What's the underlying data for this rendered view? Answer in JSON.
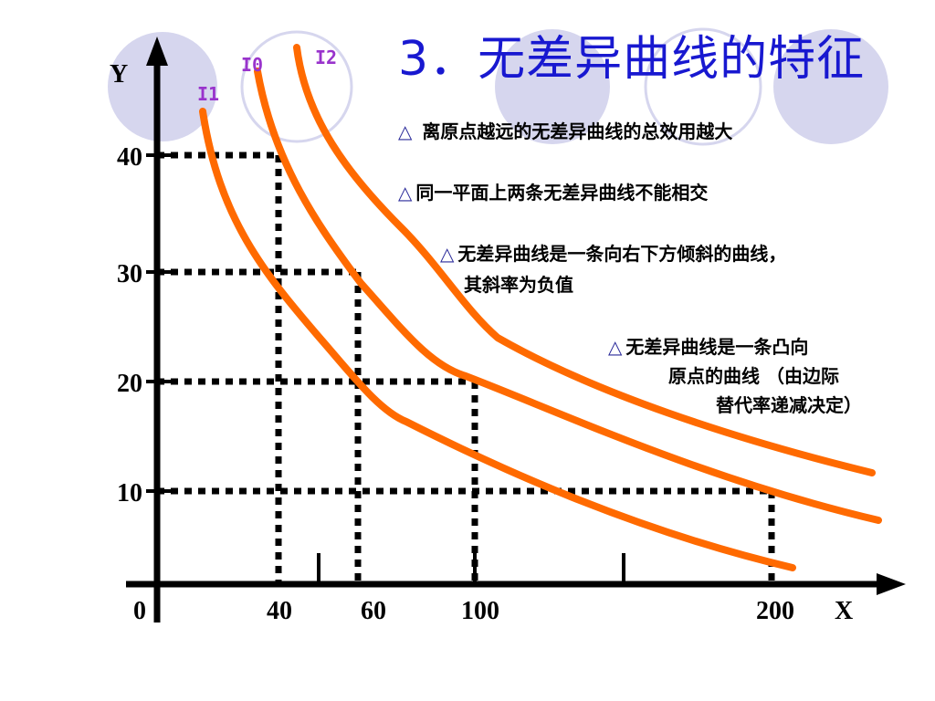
{
  "title": "3．无差异曲线的特征",
  "bullets": [
    {
      "symbol": "△",
      "lines": [
        "离原点越远的无差异曲线的总效用越大"
      ]
    },
    {
      "symbol": "△",
      "lines": [
        "同一平面上两条无差异曲线不能相交"
      ]
    },
    {
      "symbol": "△",
      "lines": [
        "无差异曲线是一条向右下方倾斜的曲线，",
        "其斜率为负值"
      ]
    },
    {
      "symbol": "△",
      "lines": [
        "无差异曲线是一条凸向",
        "原点的曲线 （由边际",
        "替代率递减决定）"
      ]
    }
  ],
  "axes": {
    "y_label": "Y",
    "x_label": "X",
    "origin": "0"
  },
  "y_ticks": [
    "40",
    "30",
    "20",
    "10"
  ],
  "x_ticks": [
    "40",
    "60",
    "100",
    "200"
  ],
  "curve_labels": [
    "I1",
    "I0",
    "I2"
  ],
  "colors": {
    "curve": "#ff6a00",
    "title": "#1818d0",
    "circle": "#d6d6ee",
    "label": "#9933cc"
  }
}
